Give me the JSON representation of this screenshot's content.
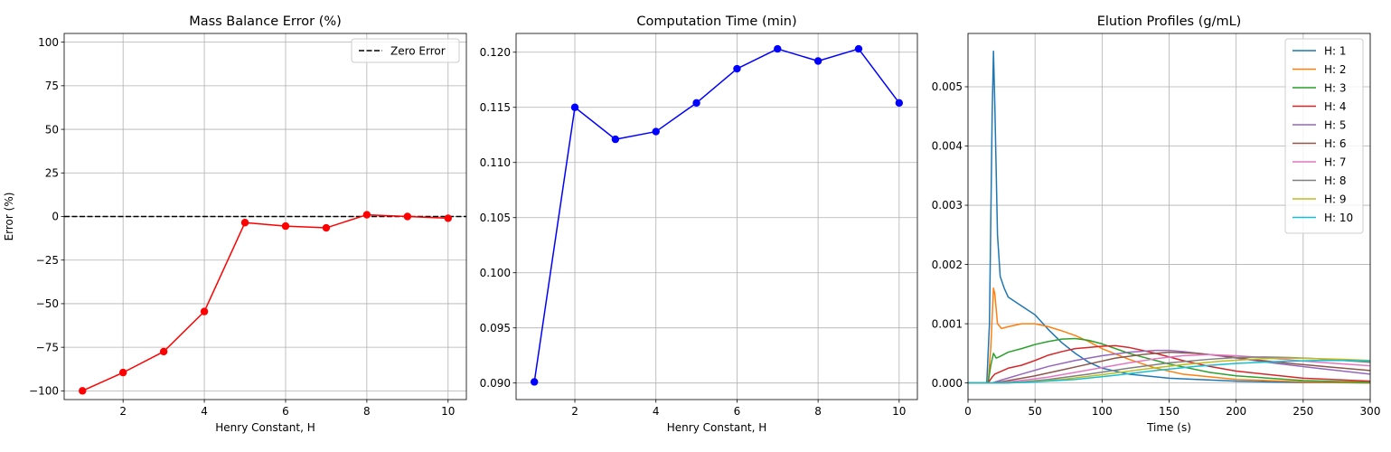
{
  "chart_data": [
    {
      "type": "line",
      "title": "Mass Balance Error (%)",
      "xlabel": "Henry Constant, H",
      "ylabel": "Error (%)",
      "xlim": [
        0.55,
        10.45
      ],
      "ylim": [
        -105,
        105
      ],
      "xticks": [
        2,
        4,
        6,
        8,
        10
      ],
      "yticks": [
        -100,
        -75,
        -50,
        -25,
        0,
        25,
        50,
        75,
        100
      ],
      "grid": true,
      "legend_position": "top-right",
      "series": [
        {
          "color": "#ff0000",
          "marker": "circle",
          "x": [
            1,
            2,
            3,
            4,
            5,
            6,
            7,
            8,
            9,
            10
          ],
          "y": [
            -100,
            -89.5,
            -77.5,
            -54.5,
            -3.5,
            -5.5,
            -6.5,
            1,
            0,
            -1
          ]
        }
      ],
      "reference_lines": [
        {
          "name": "Zero Error",
          "y": 0,
          "color": "#000000",
          "dash": "dashed"
        }
      ]
    },
    {
      "type": "line",
      "title": "Computation Time (min)",
      "xlabel": "Henry Constant, H",
      "ylabel": "",
      "xlim": [
        0.55,
        10.45
      ],
      "ylim": [
        0.0885,
        0.1217
      ],
      "xticks": [
        2,
        4,
        6,
        8,
        10
      ],
      "yticks": [
        0.09,
        0.095,
        0.1,
        0.105,
        0.11,
        0.115,
        0.12
      ],
      "ytick_decimals": 3,
      "grid": true,
      "series": [
        {
          "color": "#0000ff",
          "marker": "circle",
          "x": [
            1,
            2,
            3,
            4,
            5,
            6,
            7,
            8,
            9,
            10
          ],
          "y": [
            0.0901,
            0.115,
            0.1121,
            0.1128,
            0.1154,
            0.1185,
            0.1203,
            0.1192,
            0.1203,
            0.1154
          ]
        }
      ]
    },
    {
      "type": "line",
      "title": "Elution Profiles (g/mL)",
      "xlabel": "Time (s)",
      "ylabel": "",
      "xlim": [
        0,
        300
      ],
      "ylim": [
        -0.00028,
        0.0059
      ],
      "xticks": [
        0,
        50,
        100,
        150,
        200,
        250,
        300
      ],
      "yticks": [
        0,
        0.001,
        0.002,
        0.003,
        0.004,
        0.005
      ],
      "ytick_decimals": 3,
      "grid": true,
      "legend_position": "top-right",
      "series": [
        {
          "name": "H: 1",
          "color": "#1f77b4",
          "x": [
            0,
            14,
            16,
            18,
            19,
            20,
            22,
            24,
            27,
            30,
            40,
            50,
            60,
            70,
            80,
            90,
            100,
            120,
            150,
            200,
            250,
            300
          ],
          "y": [
            0,
            0,
            0.001,
            0.0045,
            0.0056,
            0.0047,
            0.0025,
            0.0018,
            0.0016,
            0.00145,
            0.0013,
            0.00115,
            0.0009,
            0.00068,
            0.0005,
            0.00035,
            0.00025,
            0.00015,
            8e-05,
            3e-05,
            1e-05,
            0
          ]
        },
        {
          "name": "H: 2",
          "color": "#ff7f0e",
          "x": [
            0,
            15,
            17,
            19,
            20,
            22,
            25,
            30,
            40,
            50,
            60,
            70,
            80,
            90,
            100,
            120,
            140,
            160,
            200,
            250,
            300
          ],
          "y": [
            0,
            0,
            0.0006,
            0.0016,
            0.0015,
            0.001,
            0.00092,
            0.00095,
            0.001,
            0.001,
            0.00095,
            0.00088,
            0.0008,
            0.0007,
            0.00058,
            0.0004,
            0.00025,
            0.00015,
            6e-05,
            2e-05,
            0
          ]
        },
        {
          "name": "H: 3",
          "color": "#2ca02c",
          "x": [
            0,
            15,
            17,
            19,
            21,
            24,
            30,
            40,
            50,
            60,
            70,
            80,
            90,
            100,
            120,
            150,
            180,
            200,
            250,
            300
          ],
          "y": [
            0,
            0,
            0.0003,
            0.0005,
            0.00042,
            0.00045,
            0.00052,
            0.00058,
            0.00065,
            0.0007,
            0.00074,
            0.00075,
            0.00072,
            0.00066,
            0.0005,
            0.00032,
            0.00018,
            0.00012,
            4e-05,
            1e-05
          ]
        },
        {
          "name": "H: 4",
          "color": "#d62728",
          "x": [
            0,
            15,
            18,
            20,
            25,
            30,
            40,
            50,
            60,
            70,
            80,
            90,
            100,
            110,
            120,
            140,
            160,
            180,
            200,
            250,
            300
          ],
          "y": [
            0,
            0,
            0.0001,
            0.00015,
            0.0002,
            0.00025,
            0.0003,
            0.00038,
            0.00047,
            0.00053,
            0.00058,
            0.0006,
            0.00062,
            0.00063,
            0.0006,
            0.0005,
            0.00038,
            0.00028,
            0.0002,
            8e-05,
            3e-05
          ]
        },
        {
          "name": "H: 5",
          "color": "#9467bd",
          "x": [
            0,
            18,
            25,
            40,
            60,
            80,
            100,
            120,
            140,
            150,
            160,
            180,
            200,
            230,
            260,
            300
          ],
          "y": [
            0,
            0,
            5e-05,
            0.00015,
            0.00028,
            0.00038,
            0.00046,
            0.00052,
            0.00055,
            0.00055,
            0.00053,
            0.00048,
            0.00042,
            0.00033,
            0.00025,
            0.00015
          ]
        },
        {
          "name": "H: 6",
          "color": "#8c564b",
          "x": [
            0,
            20,
            30,
            50,
            70,
            90,
            110,
            130,
            150,
            170,
            190,
            210,
            240,
            270,
            300
          ],
          "y": [
            0,
            0,
            4e-05,
            0.00012,
            0.00022,
            0.00032,
            0.00042,
            0.00048,
            0.00052,
            0.0005,
            0.00046,
            0.0004,
            0.00033,
            0.00027,
            0.00021
          ]
        },
        {
          "name": "H: 7",
          "color": "#e377c2",
          "x": [
            0,
            22,
            35,
            60,
            80,
            100,
            120,
            140,
            160,
            180,
            200,
            220,
            250,
            280,
            300
          ],
          "y": [
            0,
            0,
            3e-05,
            0.0001,
            0.00018,
            0.00026,
            0.00034,
            0.00041,
            0.00046,
            0.00048,
            0.00046,
            0.00043,
            0.00037,
            0.00032,
            0.00029
          ]
        },
        {
          "name": "H: 8",
          "color": "#7f7f7f",
          "x": [
            0,
            25,
            40,
            60,
            90,
            120,
            150,
            180,
            200,
            220,
            240,
            260,
            280,
            300
          ],
          "y": [
            0,
            0,
            2e-05,
            6e-05,
            0.00015,
            0.00025,
            0.00034,
            0.0004,
            0.00043,
            0.00044,
            0.00043,
            0.00041,
            0.00038,
            0.00035
          ]
        },
        {
          "name": "H: 9",
          "color": "#bcbd22",
          "x": [
            0,
            28,
            45,
            70,
            100,
            130,
            160,
            190,
            220,
            240,
            260,
            280,
            300
          ],
          "y": [
            0,
            0,
            2e-05,
            6e-05,
            0.00014,
            0.00023,
            0.00031,
            0.00037,
            0.00041,
            0.00042,
            0.00041,
            0.0004,
            0.00038
          ]
        },
        {
          "name": "H: 10",
          "color": "#17becf",
          "x": [
            0,
            30,
            50,
            80,
            110,
            140,
            170,
            200,
            230,
            260,
            280,
            300
          ],
          "y": [
            0,
            0,
            2e-05,
            6e-05,
            0.00013,
            0.00021,
            0.00028,
            0.00033,
            0.00036,
            0.00038,
            0.00038,
            0.00037
          ]
        }
      ]
    }
  ]
}
